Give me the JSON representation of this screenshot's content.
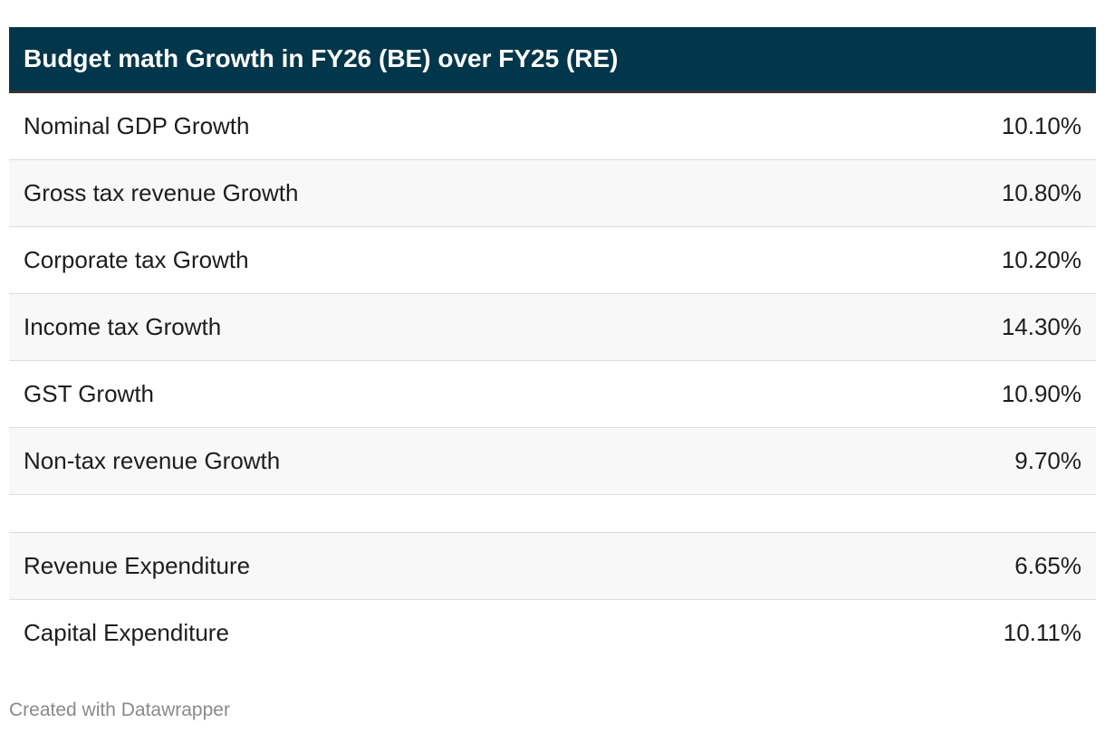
{
  "chart_data": {
    "type": "table",
    "title": "Budget math Growth in FY26 (BE) over FY25 (RE)",
    "rows": [
      {
        "label": "Nominal GDP Growth",
        "value": "10.10%"
      },
      {
        "label": "Gross tax revenue Growth",
        "value": "10.80%"
      },
      {
        "label": "Corporate tax Growth",
        "value": "10.20%"
      },
      {
        "label": "Income tax Growth",
        "value": "14.30%"
      },
      {
        "label": "GST Growth",
        "value": "10.90%"
      },
      {
        "label": "Non-tax revenue Growth",
        "value": "9.70%"
      },
      {
        "label": "",
        "value": ""
      },
      {
        "label": "Revenue Expenditure",
        "value": "6.65%"
      },
      {
        "label": "Capital Expenditure",
        "value": "10.11%"
      }
    ]
  },
  "footer": {
    "credit": "Created with Datawrapper"
  },
  "colors": {
    "header_bg": "#02364a",
    "header_text": "#ffffff",
    "row_alt_bg": "#f8f8f8"
  }
}
